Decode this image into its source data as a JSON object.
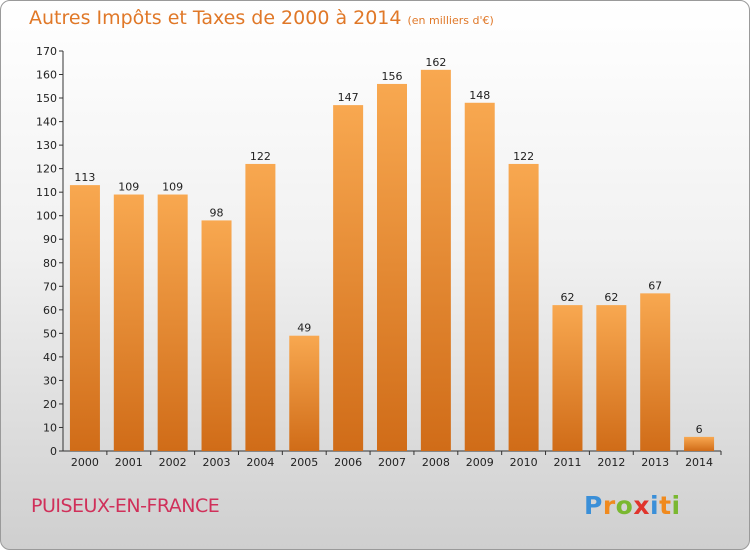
{
  "header": {
    "title": "Autres Impôts et Taxes de 2000 à 2014",
    "unit": "(en milliers d'€)"
  },
  "footer": {
    "city": "PUISEUX-EN-FRANCE",
    "logo_letters": [
      "P",
      "r",
      "o",
      "x",
      "i",
      "t",
      "i"
    ],
    "logo_colors": [
      "#3a8fd8",
      "#f08a1e",
      "#7ab830",
      "#e0342c",
      "#3a8fd8",
      "#f08a1e",
      "#7ab830"
    ]
  },
  "colors": {
    "bar_light": "#f8a850",
    "bar_dark": "#d06c18",
    "title": "#e07828",
    "city": "#d0305a"
  },
  "chart_data": {
    "type": "bar",
    "title": "Autres Impôts et Taxes de 2000 à 2014",
    "subtitle": "(en milliers d'€)",
    "categories": [
      "2000",
      "2001",
      "2002",
      "2003",
      "2004",
      "2005",
      "2006",
      "2007",
      "2008",
      "2009",
      "2010",
      "2011",
      "2012",
      "2013",
      "2014"
    ],
    "values": [
      113,
      109,
      109,
      98,
      122,
      49,
      147,
      156,
      162,
      148,
      122,
      62,
      62,
      67,
      6
    ],
    "ylim": [
      0,
      170
    ],
    "yticks": [
      0,
      10,
      20,
      30,
      40,
      50,
      60,
      70,
      80,
      90,
      100,
      110,
      120,
      130,
      140,
      150,
      160,
      170
    ],
    "grid": false,
    "data_labels": true
  }
}
